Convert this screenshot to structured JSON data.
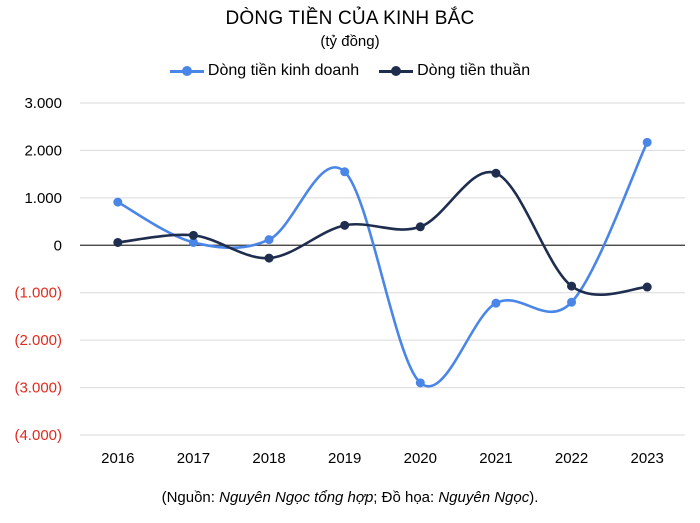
{
  "chart_data": {
    "type": "line",
    "title": "DÒNG TIỀN CỦA KINH BẮC",
    "subtitle": "(tỷ đồng)",
    "categories": [
      "2016",
      "2017",
      "2018",
      "2019",
      "2020",
      "2021",
      "2022",
      "2023"
    ],
    "series": [
      {
        "name": "Dòng tiền kinh doanh",
        "color": "#4A86E8",
        "values": [
          910,
          60,
          120,
          1550,
          -2900,
          -1220,
          -1200,
          2170
        ]
      },
      {
        "name": "Dòng tiền thuần",
        "color": "#1F2D4E",
        "values": [
          60,
          210,
          -270,
          420,
          390,
          1520,
          -860,
          -880
        ]
      }
    ],
    "ylim": [
      -4000,
      3000
    ],
    "yticks": [
      {
        "value": 3000,
        "label": "3.000"
      },
      {
        "value": 2000,
        "label": "2.000"
      },
      {
        "value": 1000,
        "label": "1.000"
      },
      {
        "value": 0,
        "label": "0"
      },
      {
        "value": -1000,
        "label": "(1.000)"
      },
      {
        "value": -2000,
        "label": "(2.000)"
      },
      {
        "value": -3000,
        "label": "(3.000)"
      },
      {
        "value": -4000,
        "label": "(4.000)"
      }
    ],
    "negative_label_color": "#E02B1E",
    "grid": true,
    "smooth": true,
    "legend_position": "top"
  },
  "source": {
    "open": "(Nguồn: ",
    "source_name": "Nguyên Ngọc tổng hợp",
    "middle": "; Đồ họa: ",
    "designer": "Nguyên Ngọc",
    "close": ")."
  }
}
